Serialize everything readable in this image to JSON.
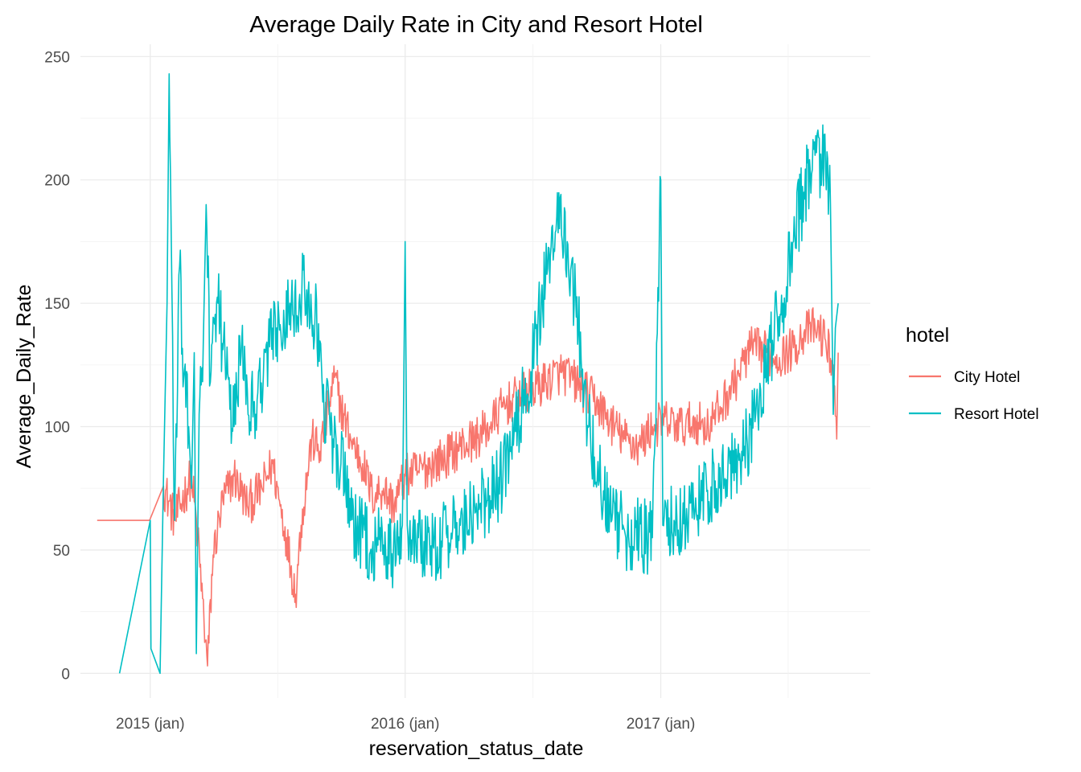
{
  "chart_data": {
    "type": "line",
    "title": "Average Daily Rate in City and Resort Hotel",
    "xlabel": "reservation_status_date",
    "ylabel": "Average_Daily_Rate",
    "xlim": [
      "2014-09-23",
      "2017-10-28"
    ],
    "ylim": [
      -10,
      255
    ],
    "x_ticks": [
      "2015-01-01",
      "2016-01-01",
      "2017-01-01"
    ],
    "x_tick_labels": [
      "2015 (jan)",
      "2016 (jan)",
      "2017 (jan)"
    ],
    "y_ticks": [
      0,
      50,
      100,
      150,
      200,
      250
    ],
    "y_tick_labels": [
      "0",
      "50",
      "100",
      "150",
      "200",
      "250"
    ],
    "grid": true,
    "legend": {
      "title": "hotel",
      "position": "right"
    },
    "series": [
      {
        "name": "City Hotel",
        "color": "#F8766D",
        "points": [
          [
            "2014-10-17",
            62
          ],
          [
            "2014-12-31",
            62
          ],
          [
            "2015-01-20",
            76
          ],
          [
            "2015-02-05",
            62
          ],
          [
            "2015-03-01",
            80
          ],
          [
            "2015-03-10",
            55
          ],
          [
            "2015-03-24",
            3
          ],
          [
            "2015-04-01",
            48
          ],
          [
            "2015-04-15",
            70
          ],
          [
            "2015-05-01",
            80
          ],
          [
            "2015-05-20",
            68
          ],
          [
            "2015-06-10",
            75
          ],
          [
            "2015-06-25",
            85
          ],
          [
            "2015-07-05",
            70
          ],
          [
            "2015-07-15",
            55
          ],
          [
            "2015-07-28",
            32
          ],
          [
            "2015-08-05",
            60
          ],
          [
            "2015-08-20",
            95
          ],
          [
            "2015-09-01",
            90
          ],
          [
            "2015-09-15",
            110
          ],
          [
            "2015-09-22",
            120
          ],
          [
            "2015-10-01",
            108
          ],
          [
            "2015-10-15",
            95
          ],
          [
            "2015-11-01",
            85
          ],
          [
            "2015-11-15",
            72
          ],
          [
            "2015-12-01",
            75
          ],
          [
            "2015-12-15",
            68
          ],
          [
            "2016-01-01",
            80
          ],
          [
            "2016-01-20",
            82
          ],
          [
            "2016-02-10",
            85
          ],
          [
            "2016-03-01",
            88
          ],
          [
            "2016-03-20",
            92
          ],
          [
            "2016-04-10",
            95
          ],
          [
            "2016-05-01",
            100
          ],
          [
            "2016-05-20",
            108
          ],
          [
            "2016-06-10",
            112
          ],
          [
            "2016-07-01",
            115
          ],
          [
            "2016-07-20",
            118
          ],
          [
            "2016-08-10",
            122
          ],
          [
            "2016-08-25",
            120
          ],
          [
            "2016-09-10",
            115
          ],
          [
            "2016-10-01",
            110
          ],
          [
            "2016-10-20",
            102
          ],
          [
            "2016-11-10",
            95
          ],
          [
            "2016-12-01",
            92
          ],
          [
            "2016-12-20",
            100
          ],
          [
            "2017-01-10",
            102
          ],
          [
            "2017-02-01",
            100
          ],
          [
            "2017-02-20",
            102
          ],
          [
            "2017-03-10",
            100
          ],
          [
            "2017-04-01",
            110
          ],
          [
            "2017-04-20",
            120
          ],
          [
            "2017-05-10",
            132
          ],
          [
            "2017-06-01",
            130
          ],
          [
            "2017-06-20",
            128
          ],
          [
            "2017-07-10",
            132
          ],
          [
            "2017-07-25",
            138
          ],
          [
            "2017-08-10",
            140
          ],
          [
            "2017-08-25",
            135
          ],
          [
            "2017-09-05",
            125
          ],
          [
            "2017-09-10",
            95
          ],
          [
            "2017-09-12",
            130
          ]
        ]
      },
      {
        "name": "Resort Hotel",
        "color": "#00BFC4",
        "points": [
          [
            "2014-11-18",
            0
          ],
          [
            "2015-01-01",
            62
          ],
          [
            "2015-01-02",
            10
          ],
          [
            "2015-01-15",
            0
          ],
          [
            "2015-01-20",
            80
          ],
          [
            "2015-01-25",
            150
          ],
          [
            "2015-01-28",
            243
          ],
          [
            "2015-02-05",
            62
          ],
          [
            "2015-02-12",
            165
          ],
          [
            "2015-02-18",
            120
          ],
          [
            "2015-02-25",
            100
          ],
          [
            "2015-03-01",
            75
          ],
          [
            "2015-03-05",
            130
          ],
          [
            "2015-03-08",
            8
          ],
          [
            "2015-03-12",
            105
          ],
          [
            "2015-03-18",
            135
          ],
          [
            "2015-03-22",
            190
          ],
          [
            "2015-03-28",
            118
          ],
          [
            "2015-04-08",
            150
          ],
          [
            "2015-04-20",
            120
          ],
          [
            "2015-05-01",
            100
          ],
          [
            "2015-05-12",
            135
          ],
          [
            "2015-05-20",
            115
          ],
          [
            "2015-06-01",
            105
          ],
          [
            "2015-06-15",
            130
          ],
          [
            "2015-07-01",
            140
          ],
          [
            "2015-07-20",
            150
          ],
          [
            "2015-08-10",
            155
          ],
          [
            "2015-08-25",
            145
          ],
          [
            "2015-09-05",
            110
          ],
          [
            "2015-09-20",
            95
          ],
          [
            "2015-10-01",
            85
          ],
          [
            "2015-10-15",
            62
          ],
          [
            "2015-11-01",
            55
          ],
          [
            "2015-11-15",
            50
          ],
          [
            "2015-12-01",
            52
          ],
          [
            "2015-12-15",
            48
          ],
          [
            "2015-12-28",
            60
          ],
          [
            "2016-01-01",
            175
          ],
          [
            "2016-01-04",
            60
          ],
          [
            "2016-01-20",
            55
          ],
          [
            "2016-02-10",
            52
          ],
          [
            "2016-03-01",
            55
          ],
          [
            "2016-03-20",
            60
          ],
          [
            "2016-04-10",
            65
          ],
          [
            "2016-05-01",
            72
          ],
          [
            "2016-05-20",
            80
          ],
          [
            "2016-06-10",
            100
          ],
          [
            "2016-07-01",
            125
          ],
          [
            "2016-07-20",
            160
          ],
          [
            "2016-08-05",
            185
          ],
          [
            "2016-08-20",
            175
          ],
          [
            "2016-09-05",
            140
          ],
          [
            "2016-09-20",
            100
          ],
          [
            "2016-10-05",
            78
          ],
          [
            "2016-10-20",
            65
          ],
          [
            "2016-11-10",
            58
          ],
          [
            "2016-12-01",
            55
          ],
          [
            "2016-12-20",
            55
          ],
          [
            "2017-01-01",
            200
          ],
          [
            "2017-01-04",
            60
          ],
          [
            "2017-01-20",
            62
          ],
          [
            "2017-02-10",
            65
          ],
          [
            "2017-03-01",
            70
          ],
          [
            "2017-03-20",
            78
          ],
          [
            "2017-04-10",
            85
          ],
          [
            "2017-05-01",
            92
          ],
          [
            "2017-05-20",
            105
          ],
          [
            "2017-06-10",
            135
          ],
          [
            "2017-06-25",
            150
          ],
          [
            "2017-07-10",
            175
          ],
          [
            "2017-07-25",
            195
          ],
          [
            "2017-08-10",
            210
          ],
          [
            "2017-08-25",
            205
          ],
          [
            "2017-09-01",
            190
          ],
          [
            "2017-09-05",
            105
          ],
          [
            "2017-09-08",
            140
          ],
          [
            "2017-09-12",
            150
          ]
        ]
      }
    ]
  }
}
